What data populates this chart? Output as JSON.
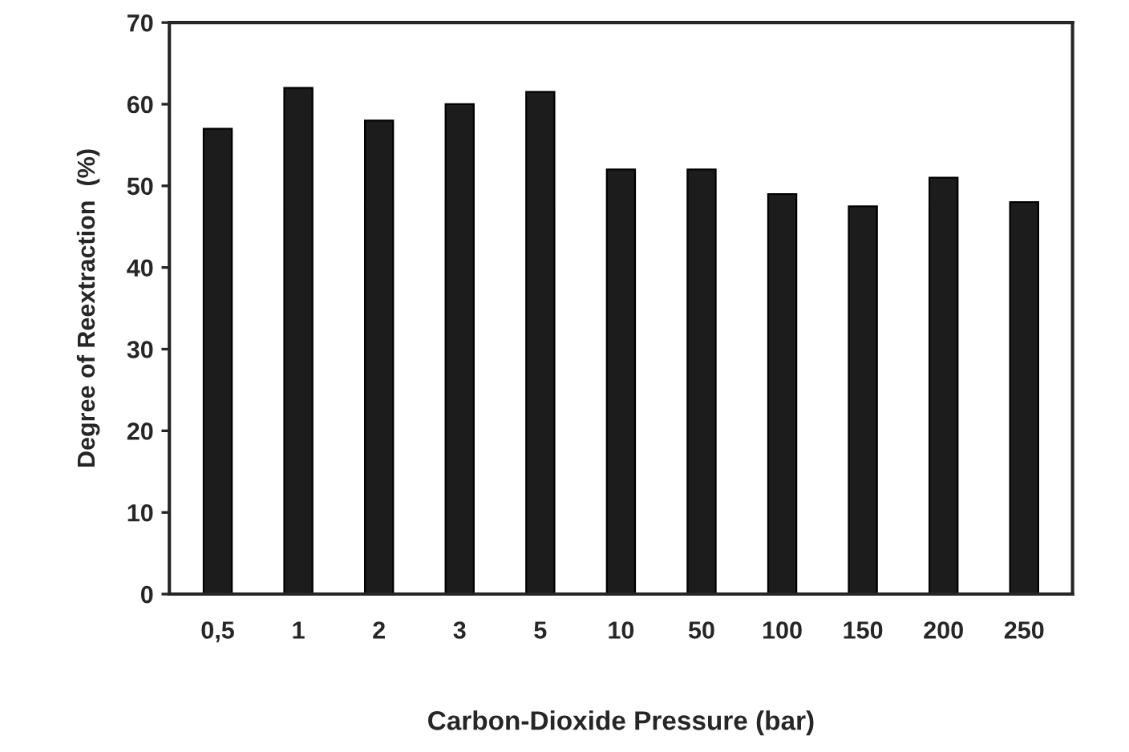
{
  "chart_data": {
    "type": "bar",
    "xlabel": "Carbon-Dioxide Pressure (bar)",
    "ylabel": "Degree of Reextraction  (%)",
    "categories": [
      "0,5",
      "1",
      "2",
      "3",
      "5",
      "10",
      "50",
      "100",
      "150",
      "200",
      "250"
    ],
    "values": [
      57,
      62,
      58,
      60,
      61.5,
      52,
      52,
      49,
      47.5,
      51,
      48
    ],
    "color": "#1c1c1c",
    "ylim": [
      0,
      70
    ],
    "yticks": [
      0,
      10,
      20,
      30,
      40,
      50,
      60,
      70
    ],
    "grid": false
  }
}
